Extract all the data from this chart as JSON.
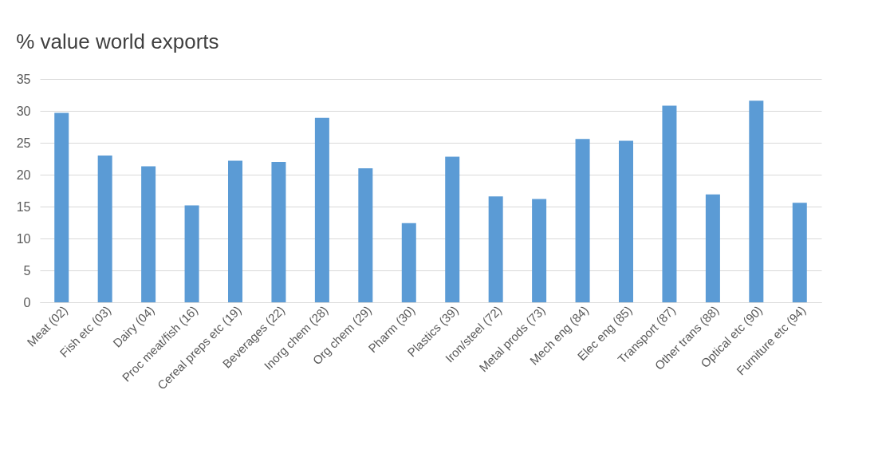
{
  "chart_data": {
    "type": "bar",
    "title": "% value world exports",
    "categories": [
      "Meat (02)",
      "Fish etc (03)",
      "Dairy (04)",
      "Proc meat/fish (16)",
      "Cereal preps etc (19)",
      "Beverages (22)",
      "Inorg chem (28)",
      "Org chem (29)",
      "Pharm (30)",
      "Plastics (39)",
      "Iron/steel (72)",
      "Metal prods (73)",
      "Mech eng (84)",
      "Elec eng (85)",
      "Transport (87)",
      "Other trans (88)",
      "Optical etc (90)",
      "Furniture etc (94)"
    ],
    "values": [
      29.7,
      23.0,
      21.3,
      15.2,
      22.2,
      22.0,
      28.9,
      21.0,
      12.4,
      22.8,
      16.6,
      16.2,
      25.6,
      25.3,
      30.8,
      16.9,
      31.6,
      15.6
    ],
    "color": "#5b9bd5",
    "ylim": [
      0,
      35
    ],
    "yticks": [
      0,
      5,
      10,
      15,
      20,
      25,
      30,
      35
    ],
    "grid": "y"
  }
}
